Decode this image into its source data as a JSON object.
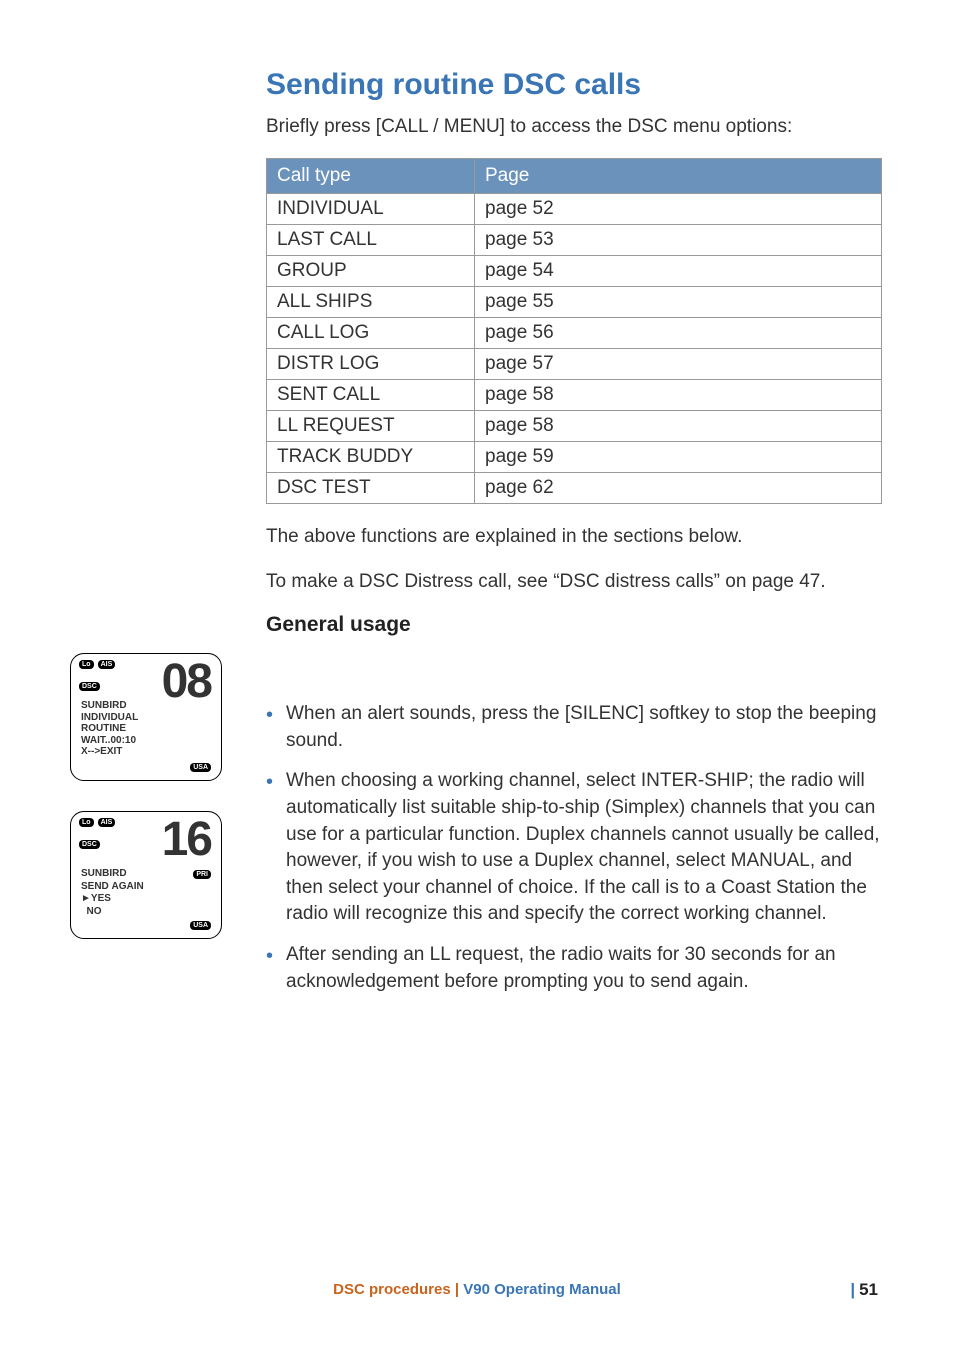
{
  "heading": "Sending routine DSC calls",
  "intro": "Briefly press [CALL / MENU] to access the DSC menu options:",
  "table": {
    "columns": [
      "Call type",
      "Page"
    ],
    "rows": [
      [
        "INDIVIDUAL",
        "page 52"
      ],
      [
        "LAST CALL",
        "page 53"
      ],
      [
        "GROUP",
        "page 54"
      ],
      [
        "ALL SHIPS",
        "page 55"
      ],
      [
        "CALL LOG",
        "page 56"
      ],
      [
        "DISTR LOG",
        "page 57"
      ],
      [
        "SENT CALL",
        "page 58"
      ],
      [
        "LL REQUEST",
        "page 58"
      ],
      [
        "TRACK BUDDY",
        "page 59"
      ],
      [
        "DSC TEST",
        "page 62"
      ]
    ]
  },
  "after1": "The above functions are explained in the sections below.",
  "after2": "To make a DSC Distress call, see “DSC distress calls” on page 47.",
  "subheading": "General usage",
  "bullets": [
    "When an alert sounds, press the [SILENC] softkey to stop the beeping sound.",
    "When choosing a working channel, select INTER-SHIP; the radio will automatically list suitable ship-to-ship (Simplex) channels that you can use for a particular function. Duplex channels cannot usually be called, however, if you wish to use a Duplex channel, select MANUAL, and then select your channel of choice. If the call is to a Coast Station the radio will recognize this and specify the correct working channel.",
    "After sending an LL request, the radio waits for 30 seconds for an acknowledgement before prompting you to send again."
  ],
  "screens": [
    {
      "channel": "08",
      "top_icons": [
        "Lo",
        "AIS"
      ],
      "dsc_icon": "DSC",
      "lines": [
        "SUNBIRD",
        "INDIVIDUAL",
        "ROUTINE",
        "WAIT..00:10",
        "X-->EXIT"
      ],
      "mid_icon": null,
      "bottom_icon": "USA"
    },
    {
      "channel": "16",
      "top_icons": [
        "Lo",
        "AIS"
      ],
      "dsc_icon": "DSC",
      "lines": [
        "SUNBIRD",
        "SEND AGAIN",
        "►YES",
        "  NO"
      ],
      "mid_icon": "PRI",
      "bottom_icon": "USA"
    }
  ],
  "footer": {
    "section": "DSC procedures",
    "manual": "V90 Operating Manual",
    "page": "51"
  },
  "colors": {
    "heading": "#3a75b5",
    "table_header_bg": "#6b92bb",
    "bullet": "#3a75b5",
    "footer_section": "#c8641e",
    "footer_manual": "#3a75b5"
  }
}
